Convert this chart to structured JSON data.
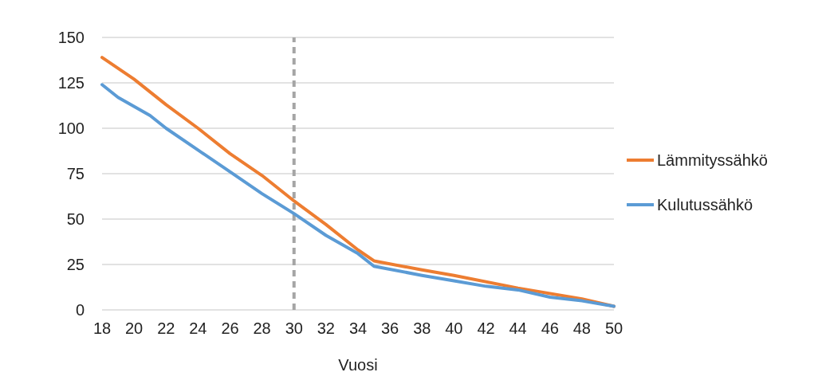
{
  "chart_data": {
    "type": "line",
    "xlabel": "Vuosi",
    "xlim": [
      18,
      50
    ],
    "xticks": [
      18,
      20,
      22,
      24,
      26,
      28,
      30,
      32,
      34,
      36,
      38,
      40,
      42,
      44,
      46,
      48,
      50
    ],
    "ylim": [
      0,
      150
    ],
    "yticks": [
      0,
      25,
      50,
      75,
      100,
      125,
      150
    ],
    "grid": "y",
    "legend": "right",
    "marker": "none",
    "line_style": "solid",
    "ref_lines": [
      {
        "axis": "x",
        "value": 30,
        "color": "#a5a5a5",
        "line_style": "dashed"
      }
    ],
    "series": [
      {
        "name": "Lämmityssähkö",
        "color": "#ed7d31",
        "x": [
          18,
          20,
          22,
          24,
          26,
          28,
          30,
          32,
          34,
          35,
          38,
          40,
          44,
          48,
          50
        ],
        "values": [
          139,
          127,
          113,
          100,
          86,
          74,
          60,
          47,
          33,
          27,
          22,
          19,
          12,
          6,
          2
        ]
      },
      {
        "name": "Kulutussähkö",
        "color": "#5b9bd5",
        "x": [
          18,
          19,
          21,
          22,
          24,
          26,
          28,
          30,
          32,
          34,
          35,
          38,
          40,
          42,
          44,
          46,
          48,
          50
        ],
        "values": [
          124,
          117,
          107,
          100,
          88,
          76,
          64,
          53,
          41,
          31,
          24,
          19,
          16,
          13,
          11,
          7,
          5,
          2
        ]
      }
    ]
  }
}
